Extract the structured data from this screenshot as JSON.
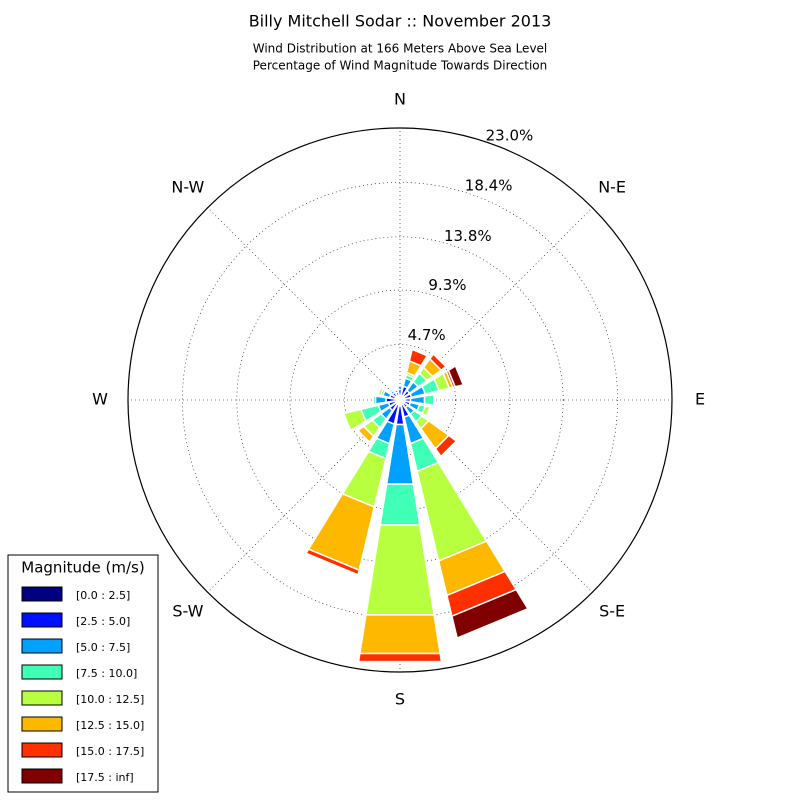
{
  "chart_data": {
    "type": "windrose",
    "title": "Billy Mitchell Sodar :: November 2013",
    "subtitle": [
      "Wind Distribution at 166 Meters Above Sea Level",
      "Percentage of Wind Magnitude Towards Direction"
    ],
    "categories": [
      "N",
      null,
      "N-E",
      null,
      "E",
      null,
      "S-E",
      null,
      "S",
      null,
      "S-W",
      null,
      "W",
      null,
      "N-W",
      null
    ],
    "ylim": [
      0,
      23.0
    ],
    "yticks": [
      {
        "value": 4.7,
        "label": "4.7%"
      },
      {
        "value": 9.3,
        "label": "9.3%"
      },
      {
        "value": 13.8,
        "label": "13.8%"
      },
      {
        "value": 18.4,
        "label": "18.4%"
      },
      {
        "value": 23.0,
        "label": "23.0%"
      }
    ],
    "grid": true,
    "legend": {
      "title": "Magnitude (m/s)",
      "position": "lower left"
    },
    "series": [
      {
        "name": "[0.0 : 2.5]",
        "color": "#000080",
        "values": [
          0.3,
          0.3,
          0.3,
          0.3,
          0.3,
          0.3,
          0.3,
          0.4,
          0.5,
          0.4,
          0.3,
          0.3,
          0.3,
          0.3,
          0.3,
          0.3
        ]
      },
      {
        "name": "[2.5 : 5.0]",
        "color": "#0010ff",
        "values": [
          0.6,
          0.9,
          0.7,
          0.7,
          0.6,
          0.6,
          0.5,
          1.1,
          1.6,
          1.7,
          0.8,
          0.7,
          0.9,
          0.6,
          0.5,
          0.4
        ]
      },
      {
        "name": "[5.0 : 7.5]",
        "color": "#00a0ff",
        "values": [
          0.3,
          0.7,
          0.9,
          1.2,
          1.2,
          0.8,
          0.7,
          2.3,
          5.1,
          1.7,
          0.9,
          0.9,
          0.9,
          0.6,
          0.2,
          0.2
        ]
      },
      {
        "name": "[7.5 : 10.0]",
        "color": "#40ffb7",
        "values": [
          0,
          0.3,
          0.9,
          1.2,
          0.8,
          0.5,
          0.8,
          2.4,
          3.5,
          1.3,
          0.9,
          1.5,
          0.2,
          0.2,
          0,
          0
        ]
      },
      {
        "name": "[10.0 : 12.5]",
        "color": "#b8ff40",
        "values": [
          0,
          0.2,
          0.6,
          0.9,
          0,
          0.4,
          0.7,
          7.8,
          7.7,
          4.2,
          0.9,
          1.5,
          0,
          0,
          0,
          0
        ]
      },
      {
        "name": "[12.5 : 15.0]",
        "color": "#ffb800",
        "values": [
          0,
          1.0,
          0.9,
          0.3,
          0,
          0,
          2.1,
          3.0,
          3.3,
          5.5,
          0.6,
          0,
          0,
          0.2,
          0,
          0
        ]
      },
      {
        "name": "[15.0 : 17.5]",
        "color": "#ff3000",
        "values": [
          0,
          1.0,
          0.5,
          0.2,
          0,
          0,
          0.8,
          1.8,
          0.7,
          0.4,
          0,
          0,
          0,
          0,
          0,
          0
        ]
      },
      {
        "name": "[17.5 : inf]",
        "color": "#800000",
        "values": [
          0,
          0,
          0,
          0.7,
          0,
          0,
          0.1,
          1.9,
          0,
          0,
          0,
          0,
          0,
          0,
          0,
          0
        ]
      }
    ]
  }
}
